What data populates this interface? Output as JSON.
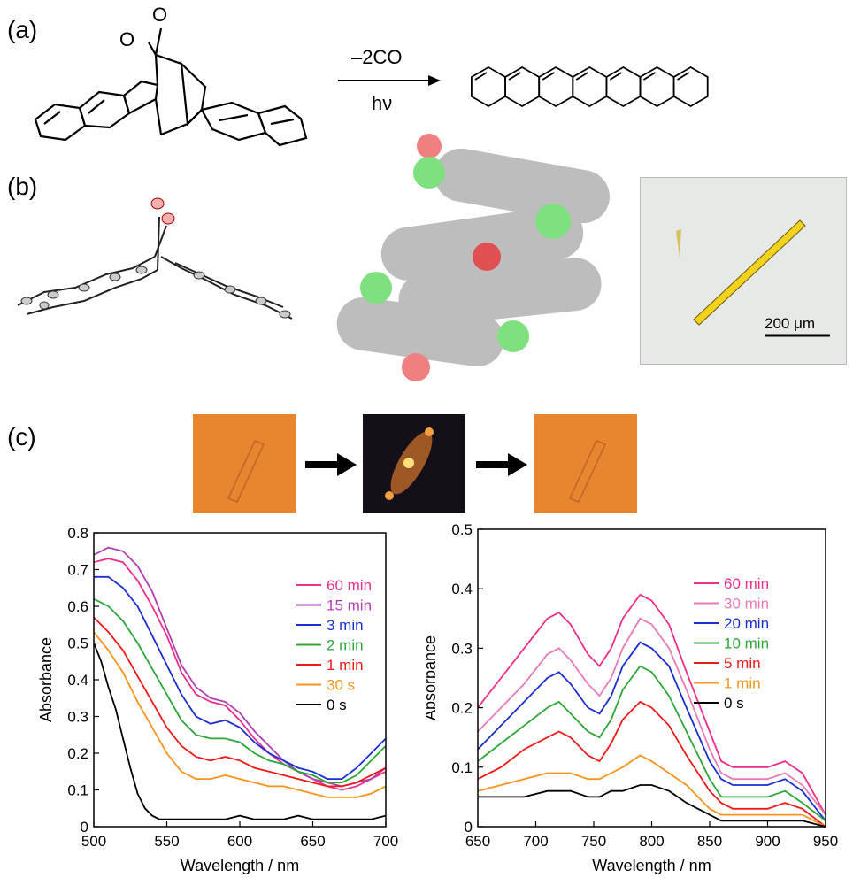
{
  "figure": {
    "panel_a": "(a)",
    "panel_b": "(b)",
    "panel_c": "(c)",
    "reaction_top": "–2CO",
    "reaction_bottom": "hν",
    "scale_bar": "200 μm",
    "colors": {
      "bg": "#ffffff",
      "orange_photo": "#e8862f",
      "dark_photo": "#151018",
      "crystal_yellow": "#f2d21a"
    }
  },
  "chart_data": [
    {
      "type": "line",
      "xlabel": "Wavelength / nm",
      "ylabel": "Absorbance",
      "xlim": [
        500,
        700
      ],
      "ylim": [
        0,
        0.8
      ],
      "xticks": [
        500,
        550,
        600,
        650,
        700
      ],
      "yticks": [
        "0",
        "0.1",
        "0.2",
        "0.3",
        "0.4",
        "0.5",
        "0.6",
        "0.7",
        "0.8"
      ],
      "legend_position": "right",
      "series": [
        {
          "name": "60 min",
          "color": "#ee2d8c",
          "x": [
            500,
            510,
            520,
            530,
            540,
            550,
            560,
            570,
            580,
            590,
            600,
            610,
            620,
            630,
            640,
            650,
            660,
            670,
            680,
            690,
            700
          ],
          "y": [
            0.72,
            0.73,
            0.72,
            0.67,
            0.6,
            0.52,
            0.42,
            0.36,
            0.34,
            0.33,
            0.29,
            0.24,
            0.2,
            0.17,
            0.15,
            0.13,
            0.11,
            0.1,
            0.11,
            0.13,
            0.15
          ]
        },
        {
          "name": "15 min",
          "color": "#b040b0",
          "x": [
            500,
            510,
            520,
            530,
            540,
            550,
            560,
            570,
            580,
            590,
            600,
            610,
            620,
            630,
            640,
            650,
            660,
            670,
            680,
            690,
            700
          ],
          "y": [
            0.74,
            0.76,
            0.75,
            0.71,
            0.64,
            0.54,
            0.44,
            0.38,
            0.35,
            0.34,
            0.31,
            0.26,
            0.22,
            0.18,
            0.15,
            0.13,
            0.12,
            0.11,
            0.12,
            0.13,
            0.16
          ]
        },
        {
          "name": "3 min",
          "color": "#1a2fd0",
          "x": [
            500,
            510,
            520,
            530,
            540,
            550,
            560,
            570,
            580,
            590,
            600,
            610,
            620,
            630,
            640,
            650,
            660,
            670,
            680,
            690,
            700
          ],
          "y": [
            0.68,
            0.68,
            0.65,
            0.6,
            0.52,
            0.44,
            0.36,
            0.3,
            0.28,
            0.29,
            0.27,
            0.23,
            0.2,
            0.18,
            0.16,
            0.15,
            0.13,
            0.13,
            0.16,
            0.2,
            0.24
          ]
        },
        {
          "name": "2 min",
          "color": "#2ea63a",
          "x": [
            500,
            510,
            520,
            530,
            540,
            550,
            560,
            570,
            580,
            590,
            600,
            610,
            620,
            630,
            640,
            650,
            660,
            670,
            680,
            690,
            700
          ],
          "y": [
            0.62,
            0.6,
            0.56,
            0.5,
            0.43,
            0.36,
            0.29,
            0.25,
            0.24,
            0.24,
            0.23,
            0.2,
            0.18,
            0.17,
            0.15,
            0.14,
            0.12,
            0.12,
            0.14,
            0.18,
            0.22
          ]
        },
        {
          "name": "1 min",
          "color": "#ee1a1a",
          "x": [
            500,
            510,
            520,
            530,
            540,
            550,
            560,
            570,
            580,
            590,
            600,
            610,
            620,
            630,
            640,
            650,
            660,
            670,
            680,
            690,
            700
          ],
          "y": [
            0.57,
            0.53,
            0.48,
            0.41,
            0.34,
            0.27,
            0.22,
            0.19,
            0.18,
            0.19,
            0.18,
            0.16,
            0.15,
            0.14,
            0.13,
            0.12,
            0.11,
            0.11,
            0.12,
            0.14,
            0.16
          ]
        },
        {
          "name": "30 s",
          "color": "#f7941d",
          "x": [
            500,
            510,
            520,
            530,
            540,
            550,
            560,
            570,
            580,
            590,
            600,
            610,
            620,
            630,
            640,
            650,
            660,
            670,
            680,
            690,
            700
          ],
          "y": [
            0.53,
            0.48,
            0.42,
            0.34,
            0.27,
            0.2,
            0.15,
            0.13,
            0.13,
            0.14,
            0.13,
            0.12,
            0.11,
            0.11,
            0.1,
            0.09,
            0.08,
            0.08,
            0.08,
            0.09,
            0.11
          ]
        },
        {
          "name": "0 s",
          "color": "#000000",
          "x": [
            500,
            505,
            510,
            515,
            520,
            525,
            530,
            535,
            540,
            545,
            550,
            560,
            570,
            580,
            590,
            600,
            610,
            620,
            630,
            640,
            650,
            660,
            670,
            680,
            690,
            700
          ],
          "y": [
            0.5,
            0.45,
            0.38,
            0.32,
            0.24,
            0.16,
            0.09,
            0.05,
            0.03,
            0.02,
            0.02,
            0.02,
            0.02,
            0.02,
            0.02,
            0.03,
            0.02,
            0.02,
            0.02,
            0.03,
            0.02,
            0.02,
            0.02,
            0.02,
            0.02,
            0.03
          ]
        }
      ]
    },
    {
      "type": "line",
      "xlabel": "Wavelength / nm",
      "ylabel": "Absorbance",
      "xlim": [
        650,
        950
      ],
      "ylim": [
        0,
        0.5
      ],
      "xticks": [
        650,
        700,
        750,
        800,
        850,
        900,
        950
      ],
      "yticks": [
        "0",
        "0.1",
        "0.2",
        "0.3",
        "0.4",
        "0.5"
      ],
      "legend_position": "right",
      "series": [
        {
          "name": "60 min",
          "color": "#ee2d8c",
          "x": [
            650,
            670,
            690,
            710,
            720,
            730,
            745,
            755,
            765,
            775,
            790,
            800,
            815,
            830,
            850,
            860,
            870,
            885,
            900,
            915,
            930,
            950
          ],
          "y": [
            0.2,
            0.25,
            0.3,
            0.35,
            0.36,
            0.34,
            0.29,
            0.27,
            0.3,
            0.35,
            0.39,
            0.38,
            0.34,
            0.26,
            0.16,
            0.11,
            0.1,
            0.1,
            0.1,
            0.11,
            0.09,
            0.02
          ]
        },
        {
          "name": "30 min",
          "color": "#e87ab8",
          "x": [
            650,
            670,
            690,
            710,
            720,
            730,
            745,
            755,
            765,
            775,
            790,
            800,
            815,
            830,
            850,
            860,
            870,
            885,
            900,
            915,
            930,
            950
          ],
          "y": [
            0.16,
            0.2,
            0.24,
            0.29,
            0.3,
            0.28,
            0.24,
            0.22,
            0.25,
            0.3,
            0.35,
            0.34,
            0.3,
            0.23,
            0.13,
            0.09,
            0.08,
            0.08,
            0.08,
            0.09,
            0.07,
            0.02
          ]
        },
        {
          "name": "20 min",
          "color": "#1a2fd0",
          "x": [
            650,
            670,
            690,
            710,
            720,
            730,
            745,
            755,
            765,
            775,
            790,
            800,
            815,
            830,
            850,
            860,
            870,
            885,
            900,
            915,
            930,
            950
          ],
          "y": [
            0.13,
            0.17,
            0.21,
            0.25,
            0.26,
            0.24,
            0.2,
            0.19,
            0.22,
            0.27,
            0.31,
            0.3,
            0.27,
            0.2,
            0.11,
            0.08,
            0.07,
            0.07,
            0.07,
            0.08,
            0.06,
            0.01
          ]
        },
        {
          "name": "10 min",
          "color": "#2ea63a",
          "x": [
            650,
            670,
            690,
            710,
            720,
            730,
            745,
            755,
            765,
            775,
            790,
            800,
            815,
            830,
            850,
            860,
            870,
            885,
            900,
            915,
            930,
            950
          ],
          "y": [
            0.11,
            0.14,
            0.17,
            0.2,
            0.21,
            0.19,
            0.16,
            0.15,
            0.18,
            0.23,
            0.27,
            0.26,
            0.22,
            0.16,
            0.08,
            0.05,
            0.05,
            0.05,
            0.05,
            0.06,
            0.04,
            0.01
          ]
        },
        {
          "name": "5 min",
          "color": "#ee1a1a",
          "x": [
            650,
            670,
            690,
            710,
            720,
            730,
            745,
            755,
            765,
            775,
            790,
            800,
            815,
            830,
            850,
            860,
            870,
            885,
            900,
            915,
            930,
            950
          ],
          "y": [
            0.08,
            0.1,
            0.13,
            0.15,
            0.16,
            0.15,
            0.12,
            0.11,
            0.14,
            0.18,
            0.21,
            0.2,
            0.17,
            0.12,
            0.06,
            0.04,
            0.03,
            0.03,
            0.03,
            0.04,
            0.03,
            0.0
          ]
        },
        {
          "name": "1 min",
          "color": "#f7941d",
          "x": [
            650,
            670,
            690,
            710,
            720,
            730,
            745,
            755,
            765,
            775,
            790,
            800,
            815,
            830,
            850,
            860,
            870,
            885,
            900,
            915,
            930,
            950
          ],
          "y": [
            0.06,
            0.07,
            0.08,
            0.09,
            0.09,
            0.09,
            0.08,
            0.08,
            0.09,
            0.1,
            0.12,
            0.11,
            0.09,
            0.07,
            0.03,
            0.02,
            0.02,
            0.02,
            0.02,
            0.02,
            0.02,
            0.0
          ]
        },
        {
          "name": "0 s",
          "color": "#000000",
          "x": [
            650,
            670,
            690,
            710,
            720,
            730,
            745,
            755,
            765,
            775,
            790,
            800,
            815,
            830,
            850,
            860,
            870,
            885,
            900,
            915,
            930,
            950
          ],
          "y": [
            0.05,
            0.05,
            0.05,
            0.06,
            0.06,
            0.06,
            0.05,
            0.05,
            0.06,
            0.06,
            0.07,
            0.07,
            0.06,
            0.04,
            0.02,
            0.01,
            0.01,
            0.01,
            0.01,
            0.01,
            0.01,
            0.0
          ]
        }
      ]
    }
  ]
}
